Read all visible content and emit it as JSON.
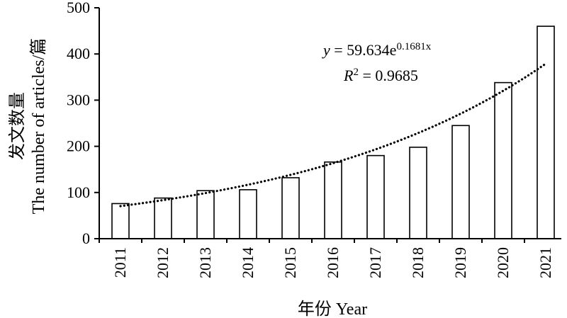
{
  "chart_data": {
    "type": "bar",
    "categories": [
      "2011",
      "2012",
      "2013",
      "2014",
      "2015",
      "2016",
      "2017",
      "2018",
      "2019",
      "2020",
      "2021"
    ],
    "values": [
      76,
      88,
      104,
      106,
      132,
      166,
      180,
      198,
      245,
      338,
      460
    ],
    "xlabel": "年份 Year",
    "ylabel_cn": "发文数量",
    "ylabel_en": "The number of articles/篇",
    "ylim": [
      0,
      500
    ],
    "yticks": [
      0,
      100,
      200,
      300,
      400,
      500
    ],
    "grid": false,
    "bar_fill": "#ffffff",
    "bar_stroke": "#000000",
    "trendline": {
      "type": "exponential",
      "a": 59.634,
      "b": 0.1681,
      "style": "dotted",
      "equation_prefix": "y = 59.634e",
      "equation_exponent": "0.1681x",
      "r2_prefix": "R",
      "r2_superscript": "2",
      "r2_value": " = 0.9685"
    }
  }
}
